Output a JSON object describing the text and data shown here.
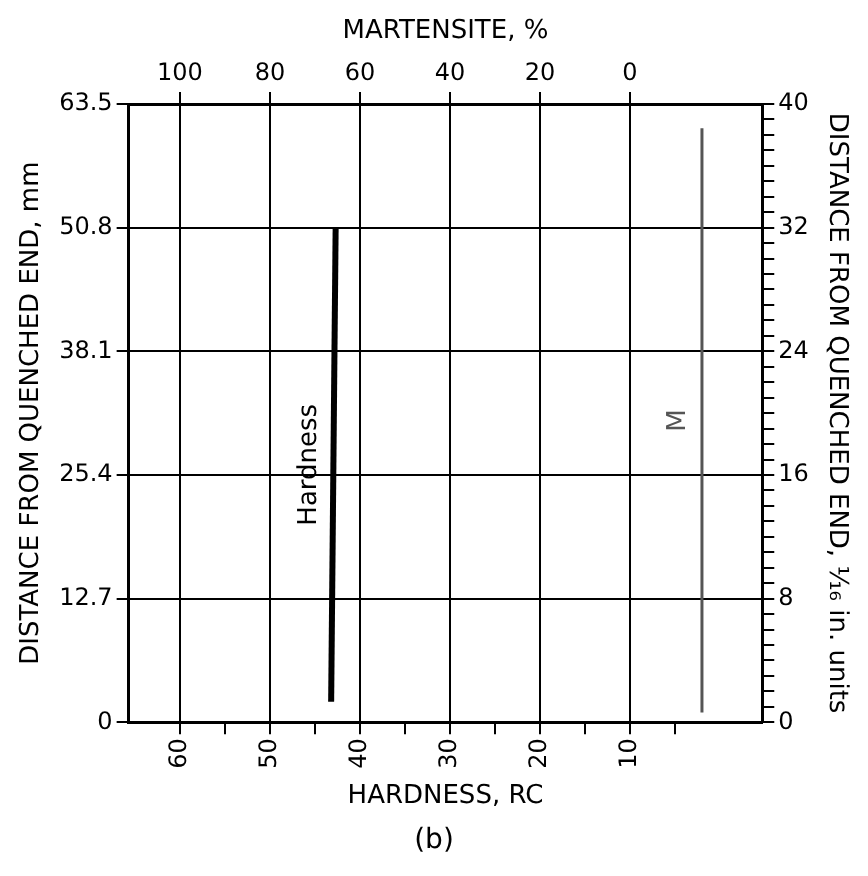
{
  "chart_data": {
    "type": "line",
    "orientation": "horizontal",
    "xlabel": "HARDNESS, RC",
    "x2label": "MARTENSITE, %",
    "ylabel": "DISTANCE FROM QUENCHED END, mm",
    "y2label": "DISTANCE FROM QUENCHED END, ¹⁄₁₆ in. units",
    "xlim": [
      65.7,
      -4.7
    ],
    "xticks": [
      60,
      {
        "value": 55,
        "label": null
      },
      50,
      {
        "value": 45,
        "label": null
      },
      40,
      {
        "value": 35,
        "label": null
      },
      30,
      {
        "value": 25,
        "label": null
      },
      20,
      {
        "value": 15,
        "label": null
      },
      10,
      {
        "value": 5,
        "label": null
      }
    ],
    "x2lim": [
      111.4,
      -29.4
    ],
    "x2ticks": [
      100,
      80,
      60,
      40,
      20,
      0
    ],
    "ylim": [
      0,
      63.5
    ],
    "yticks": [
      0,
      12.7,
      25.4,
      38.1,
      50.8,
      63.5
    ],
    "y2lim": [
      0,
      40
    ],
    "y2ticks": [
      0,
      {
        "value": 1,
        "label": null
      },
      {
        "value": 2,
        "label": null
      },
      {
        "value": 3,
        "label": null
      },
      {
        "value": 4,
        "label": null
      },
      {
        "value": 5,
        "label": null
      },
      {
        "value": 6,
        "label": null
      },
      {
        "value": 7,
        "label": null
      },
      8,
      {
        "value": 9,
        "label": null
      },
      {
        "value": 10,
        "label": null
      },
      {
        "value": 11,
        "label": null
      },
      {
        "value": 12,
        "label": null
      },
      {
        "value": 13,
        "label": null
      },
      {
        "value": 14,
        "label": null
      },
      {
        "value": 15,
        "label": null
      },
      16,
      {
        "value": 17,
        "label": null
      },
      {
        "value": 18,
        "label": null
      },
      {
        "value": 19,
        "label": null
      },
      {
        "value": 20,
        "label": null
      },
      {
        "value": 21,
        "label": null
      },
      {
        "value": 22,
        "label": null
      },
      {
        "value": 23,
        "label": null
      },
      24,
      {
        "value": 25,
        "label": null
      },
      {
        "value": 26,
        "label": null
      },
      {
        "value": 27,
        "label": null
      },
      {
        "value": 28,
        "label": null
      },
      {
        "value": 29,
        "label": null
      },
      {
        "value": 30,
        "label": null
      },
      {
        "value": 31,
        "label": null
      },
      32,
      {
        "value": 33,
        "label": null
      },
      {
        "value": 34,
        "label": null
      },
      {
        "value": 35,
        "label": null
      },
      {
        "value": 36,
        "label": null
      },
      {
        "value": 37,
        "label": null
      },
      {
        "value": 38,
        "label": null
      },
      {
        "value": 39,
        "label": null
      },
      40
    ],
    "grid": true,
    "legend": false,
    "marker": "none",
    "series": [
      {
        "name": "Hardness",
        "color": "#000000",
        "x": [
          2.1,
          50.8
        ],
        "values": [
          43.2,
          42.7
        ]
      },
      {
        "name": "M",
        "color": "#555555",
        "axis": "x2",
        "x": [
          1.0,
          61.0
        ],
        "values": [
          -16,
          -16
        ]
      }
    ],
    "annotations": [
      "(b)"
    ]
  }
}
